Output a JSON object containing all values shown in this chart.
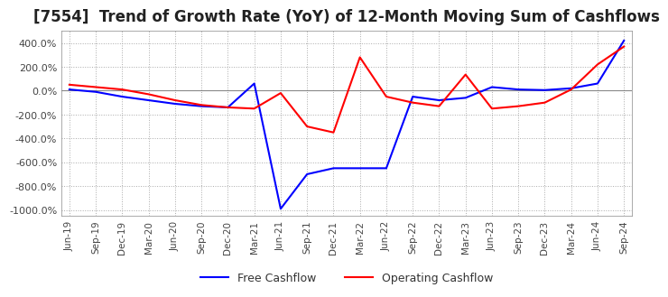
{
  "title": "[7554]  Trend of Growth Rate (YoY) of 12-Month Moving Sum of Cashflows",
  "title_fontsize": 12,
  "ylim": [
    -1050,
    500
  ],
  "yticks": [
    400,
    200,
    0,
    -200,
    -400,
    -600,
    -800,
    -1000
  ],
  "grid_color": "#aaaaaa",
  "background_color": "#ffffff",
  "plot_bg_color": "#ffffff",
  "operating_color": "#ff0000",
  "free_color": "#0000ff",
  "x_labels": [
    "Jun-19",
    "Sep-19",
    "Dec-19",
    "Mar-20",
    "Jun-20",
    "Sep-20",
    "Dec-20",
    "Mar-21",
    "Jun-21",
    "Sep-21",
    "Dec-21",
    "Mar-22",
    "Jun-22",
    "Sep-22",
    "Dec-22",
    "Mar-23",
    "Jun-23",
    "Sep-23",
    "Dec-23",
    "Mar-24",
    "Jun-24",
    "Sep-24"
  ],
  "operating_cashflow": [
    50,
    30,
    10,
    -30,
    -80,
    -120,
    -140,
    -150,
    -20,
    -300,
    -350,
    280,
    -50,
    -100,
    -130,
    135,
    -150,
    -130,
    -100,
    10,
    220,
    370
  ],
  "free_cashflow": [
    10,
    -10,
    -50,
    -80,
    -110,
    -130,
    -140,
    60,
    -990,
    -700,
    -650,
    -650,
    -650,
    -50,
    -80,
    -60,
    30,
    10,
    5,
    20,
    60,
    420
  ]
}
